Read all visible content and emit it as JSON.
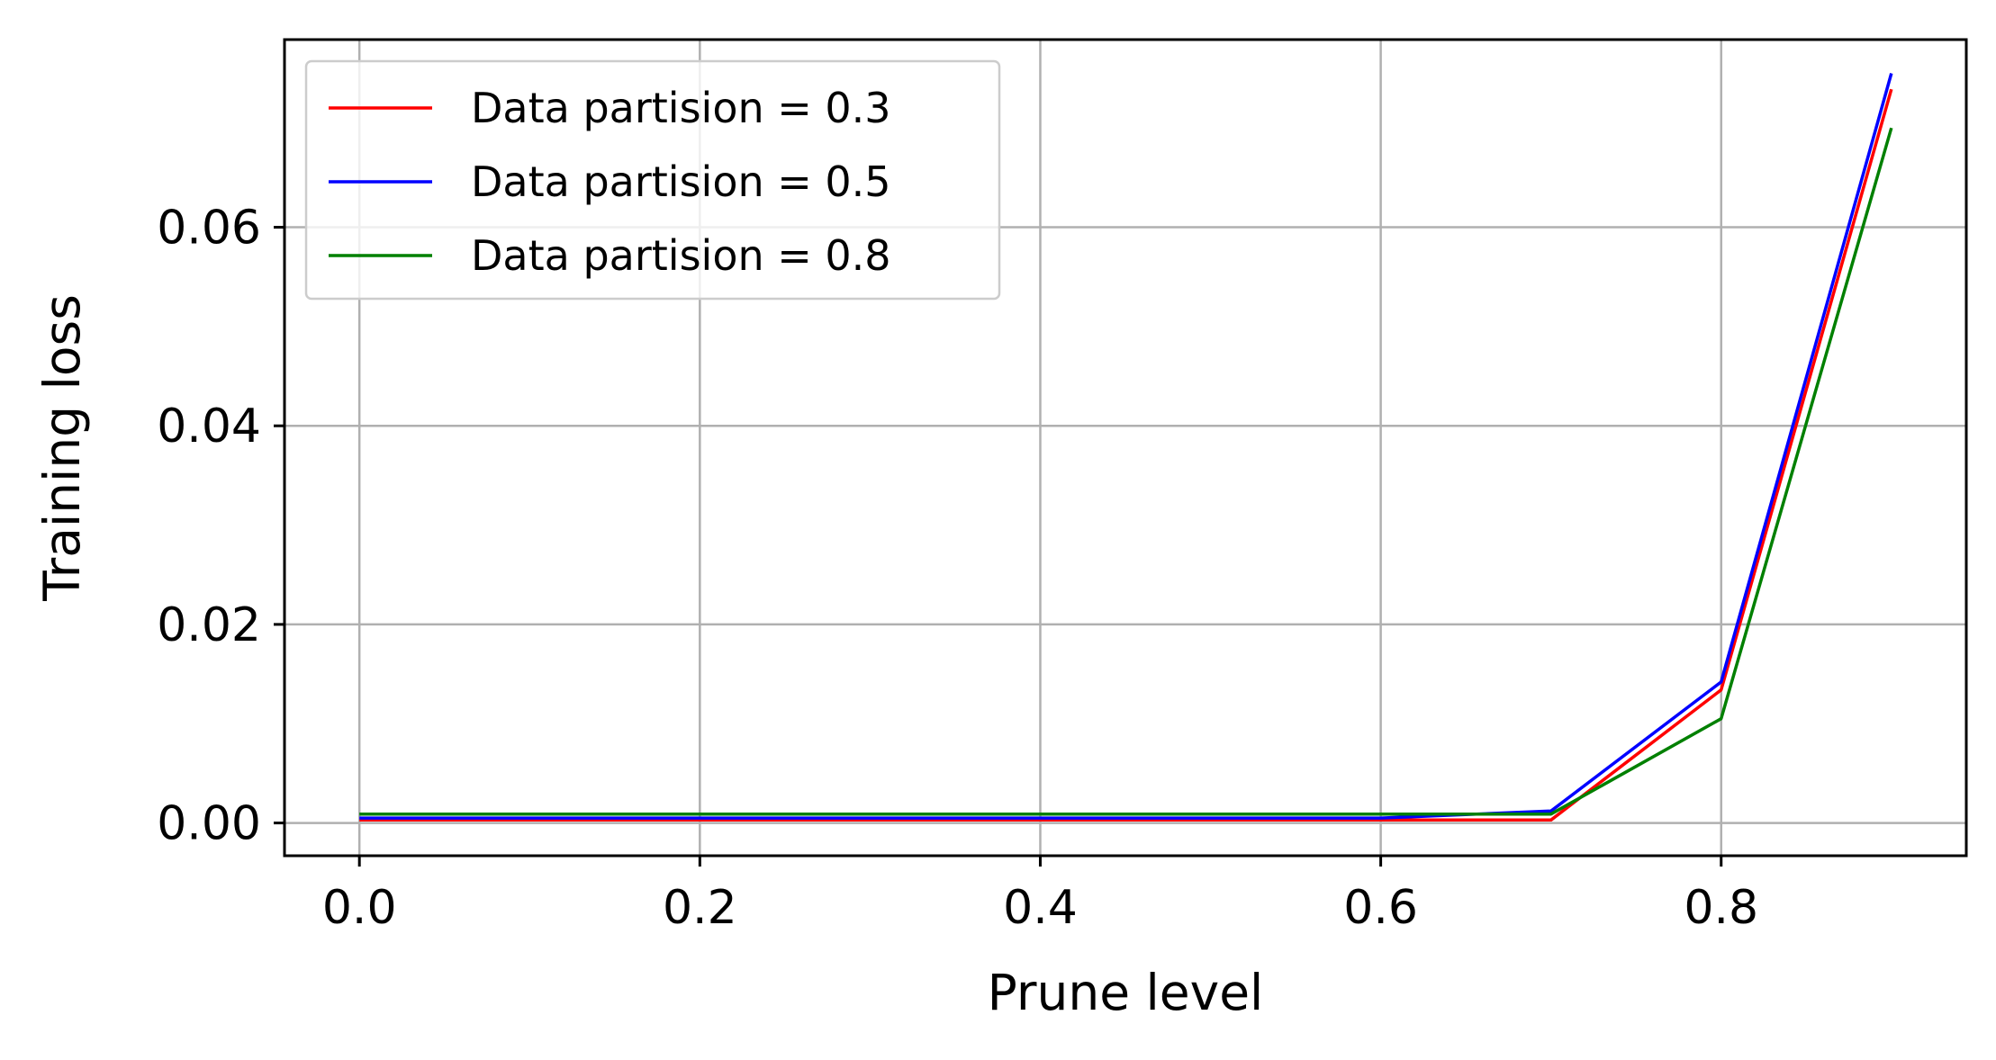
{
  "chart_data": {
    "type": "line",
    "title": "",
    "xlabel": "Prune level",
    "ylabel": "Training loss",
    "xlim": [
      -0.044,
      0.944
    ],
    "ylim": [
      -0.0033,
      0.0789
    ],
    "xticks": [
      0.0,
      0.2,
      0.4,
      0.6,
      0.8
    ],
    "xtick_labels": [
      "0.0",
      "0.2",
      "0.4",
      "0.6",
      "0.8"
    ],
    "yticks": [
      0.0,
      0.02,
      0.04,
      0.06
    ],
    "ytick_labels": [
      "0.00",
      "0.02",
      "0.04",
      "0.06"
    ],
    "grid": true,
    "legend_position": "top-left",
    "x": [
      0.0,
      0.1,
      0.2,
      0.3,
      0.4,
      0.5,
      0.6,
      0.7,
      0.8,
      0.9
    ],
    "series": [
      {
        "name": "Data partision = 0.3",
        "color": "#ff0000",
        "values": [
          0.0003,
          0.0003,
          0.0003,
          0.0003,
          0.0003,
          0.0003,
          0.0003,
          0.0003,
          0.0134,
          0.0739
        ]
      },
      {
        "name": "Data partision = 0.5",
        "color": "#0000ff",
        "values": [
          0.0005,
          0.0005,
          0.0005,
          0.0005,
          0.0005,
          0.0005,
          0.0005,
          0.0012,
          0.0142,
          0.0755
        ]
      },
      {
        "name": "Data partision = 0.8",
        "color": "#008000",
        "values": [
          0.0009,
          0.0009,
          0.0009,
          0.0009,
          0.0009,
          0.0009,
          0.0009,
          0.0009,
          0.0105,
          0.07
        ]
      }
    ]
  }
}
